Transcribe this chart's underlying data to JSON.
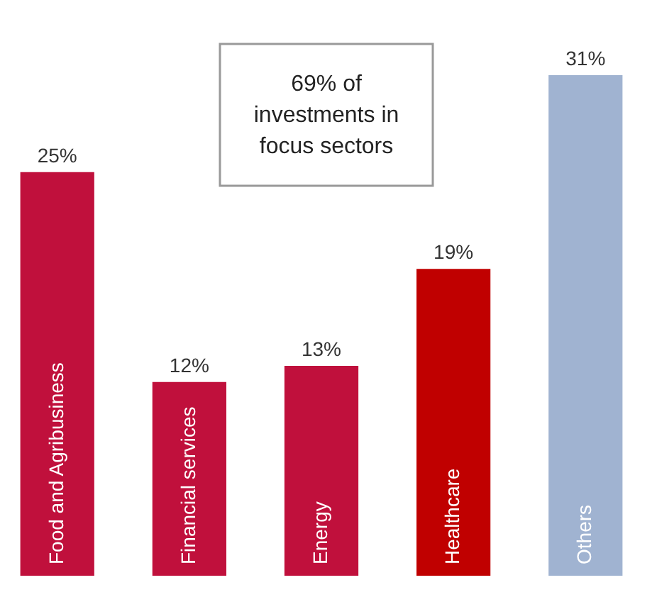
{
  "chart_data": {
    "type": "bar",
    "categories": [
      "Food and Agribusiness",
      "Financial services",
      "Energy",
      "Healthcare",
      "Others"
    ],
    "values": [
      25,
      12,
      13,
      19,
      31
    ],
    "colors": [
      "#c0103c",
      "#c0103c",
      "#c0103c",
      "#c00000",
      "#a0b3d1"
    ],
    "value_labels": [
      "25%",
      "12%",
      "13%",
      "19%",
      "31%"
    ],
    "annotations": [
      "69% of\ninvestments in\nfocus sectors"
    ],
    "tick_labels": false
  }
}
